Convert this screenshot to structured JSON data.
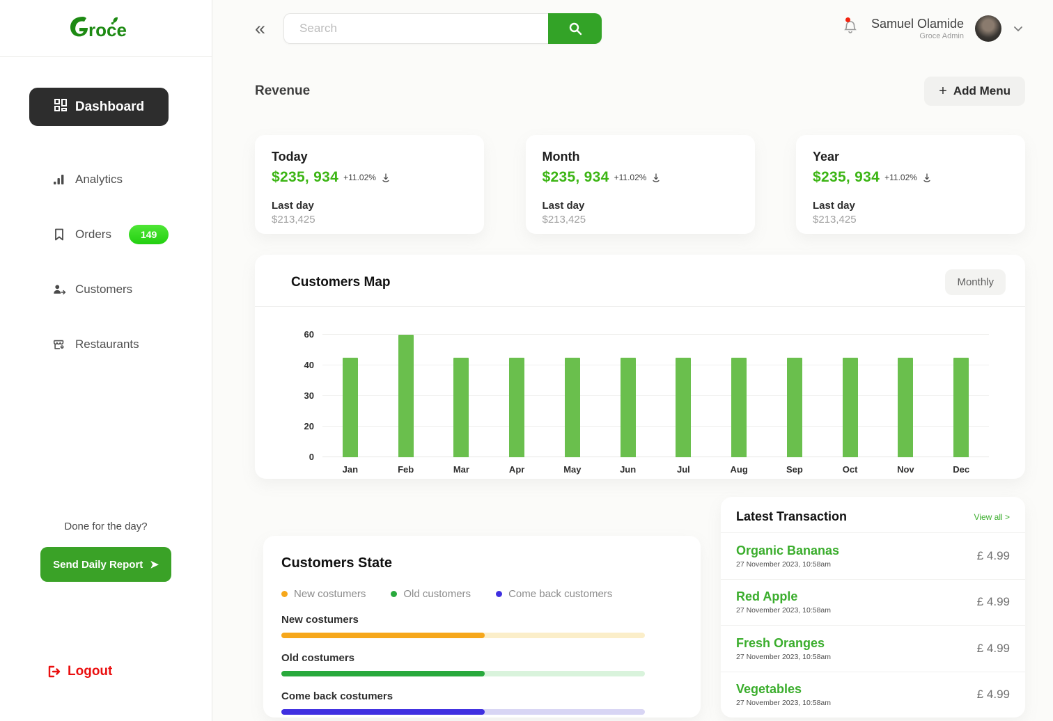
{
  "colors": {
    "accent_green": "#33a327",
    "logo_green": "#1d8a13",
    "amount_green": "#3cb514",
    "bar_green": "#6abf4d",
    "transaction_green": "#3aad2c",
    "logout_red": "#ea0f0f",
    "dark_button": "#2d2d2d",
    "new_customers_fill": "#f6a71b",
    "new_customers_track": "#fbeec9",
    "old_customers_fill": "#28a93c",
    "old_customers_track": "#d9f3dc",
    "comeback_customers_fill": "#3f2fe0",
    "comeback_customers_track": "#d8d5f4"
  },
  "sidebar": {
    "logo_text": "Groce",
    "dashboard_label": "Dashboard",
    "items": [
      {
        "label": "Analytics",
        "icon": "analytics-icon",
        "badge": null
      },
      {
        "label": "Orders",
        "icon": "orders-icon",
        "badge": "149"
      },
      {
        "label": "Customers",
        "icon": "customers-icon",
        "badge": null
      },
      {
        "label": "Restaurants",
        "icon": "restaurants-icon",
        "badge": null
      }
    ],
    "done_text": "Done for the day?",
    "report_button_label": "Send Daily Report",
    "logout_label": "Logout"
  },
  "topbar": {
    "search_placeholder": "Search",
    "user_name": "Samuel Olamide",
    "user_role": "Groce Admin"
  },
  "revenue": {
    "section_title": "Revenue",
    "add_menu_label": "Add Menu",
    "cards": [
      {
        "period": "Today",
        "amount": "$235, 934",
        "change": "+11.02%",
        "last_label": "Last day",
        "last_value": "$213,425"
      },
      {
        "period": "Month",
        "amount": "$235, 934",
        "change": "+11.02%",
        "last_label": "Last day",
        "last_value": "$213,425"
      },
      {
        "period": "Year",
        "amount": "$235, 934",
        "change": "+11.02%",
        "last_label": "Last day",
        "last_value": "$213,425"
      }
    ]
  },
  "chart_data": {
    "type": "bar",
    "title": "Customers Map",
    "filter_label": "Monthly",
    "categories": [
      "Jan",
      "Feb",
      "Mar",
      "Apr",
      "May",
      "Jun",
      "Jul",
      "Aug",
      "Sep",
      "Oct",
      "Nov",
      "Dec"
    ],
    "values": [
      45,
      60,
      45,
      45,
      45,
      45,
      45,
      45,
      45,
      45,
      45,
      45
    ],
    "yticks": [
      0,
      20,
      30,
      40,
      60
    ],
    "ylim": [
      0,
      60
    ],
    "grid": true,
    "bar_color": "#6abf4d",
    "xlabel": "",
    "ylabel": ""
  },
  "customers_state": {
    "title": "Customers State",
    "legend": [
      {
        "label": "New costumers",
        "color": "#f6a71b"
      },
      {
        "label": "Old customers",
        "color": "#28a93c"
      },
      {
        "label": "Come back customers",
        "color": "#3f2fe0"
      }
    ],
    "bars": [
      {
        "label": "New costumers",
        "percent": 56,
        "fill": "#f6a71b",
        "track": "#fbeec9"
      },
      {
        "label": "Old  costumers",
        "percent": 56,
        "fill": "#28a93c",
        "track": "#d9f3dc"
      },
      {
        "label": "Come back  costumers",
        "percent": 56,
        "fill": "#3f2fe0",
        "track": "#d8d5f4"
      }
    ]
  },
  "transactions": {
    "title": "Latest Transaction",
    "view_all_label": "View all >",
    "items": [
      {
        "name": "Organic Bananas",
        "date": "27 November 2023, 10:58am",
        "price": "£ 4.99"
      },
      {
        "name": "Red  Apple",
        "date": "27 November 2023, 10:58am",
        "price": "£ 4.99"
      },
      {
        "name": "Fresh Oranges",
        "date": "27 November 2023, 10:58am",
        "price": "£ 4.99"
      },
      {
        "name": "Vegetables",
        "date": "27 November 2023, 10:58am",
        "price": "£ 4.99"
      }
    ]
  }
}
